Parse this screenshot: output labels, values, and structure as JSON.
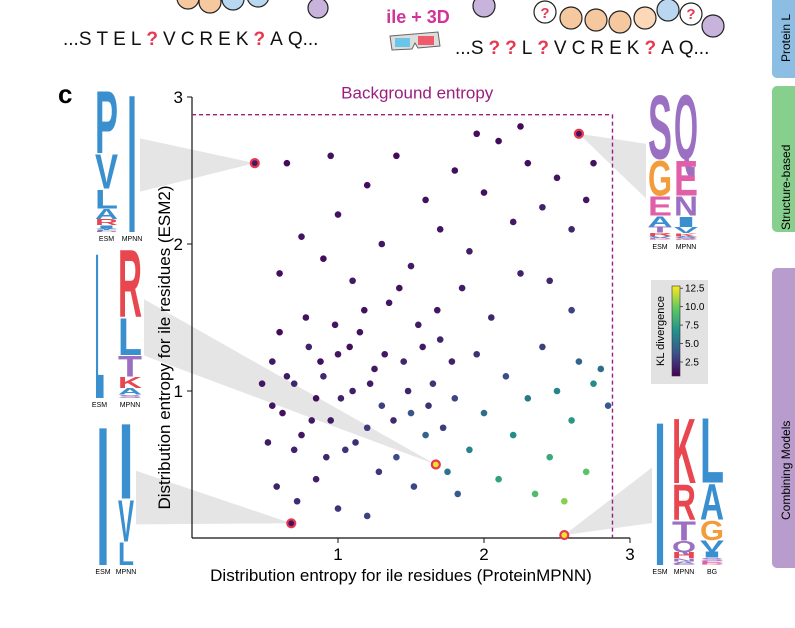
{
  "sequences": {
    "left": [
      "...S",
      "T",
      "E",
      "L",
      "?",
      "V",
      "C",
      "R",
      "E",
      "K",
      "?",
      "A",
      "Q..."
    ],
    "label": "ile + 3D",
    "right": [
      "...S",
      "?",
      "?",
      "L",
      "?",
      "V",
      "C",
      "R",
      "E",
      "K",
      "?",
      "A",
      "Q..."
    ]
  },
  "tabs": [
    "Protein L",
    "Structure-based",
    "Combining Models"
  ],
  "chart_data": {
    "type": "scatter",
    "panel_label": "c",
    "annotation": "Background entropy",
    "background_entropy": 2.88,
    "xlabel": "Distribution entropy for ile residues (ProteinMPNN)",
    "ylabel": "Distribution entropy for ile residues (ESM2)",
    "xlim": [
      0,
      3
    ],
    "ylim": [
      0,
      3
    ],
    "xticks": [
      1,
      2,
      3
    ],
    "yticks": [
      1,
      2,
      3
    ],
    "x": [
      0.55,
      0.62,
      0.7,
      0.75,
      0.8,
      0.85,
      0.9,
      0.95,
      1.0,
      1.05,
      1.1,
      1.15,
      1.2,
      1.25,
      1.3,
      1.35,
      1.4,
      1.45,
      1.5,
      1.55,
      1.6,
      1.65,
      1.7,
      1.75,
      1.8,
      1.85,
      1.9,
      1.95,
      2.0,
      2.05,
      2.1,
      2.15,
      2.2,
      2.25,
      2.3,
      2.35,
      2.4,
      2.45,
      2.5,
      2.55,
      2.6,
      2.65,
      2.7,
      2.75,
      2.8,
      0.6,
      0.75,
      0.9,
      1.0,
      1.1,
      1.2,
      1.3,
      1.4,
      1.5,
      1.6,
      1.7,
      1.8,
      1.9,
      2.0,
      2.1,
      2.2,
      2.3,
      2.4,
      2.5,
      2.6,
      2.7,
      2.75,
      2.25,
      1.95,
      0.95,
      0.65,
      0.55,
      0.6,
      0.65,
      0.7,
      0.78,
      0.82,
      0.88,
      0.92,
      0.98,
      1.02,
      1.08,
      1.12,
      1.18,
      1.22,
      1.28,
      1.32,
      1.38,
      1.42,
      1.48,
      1.52,
      1.58,
      1.62,
      1.68,
      1.72,
      1.78,
      1.82,
      0.48,
      0.52,
      0.58,
      0.72,
      0.85,
      1.0,
      1.2,
      2.85,
      2.6,
      2.45
    ],
    "values": [
      1.2,
      0.85,
      1.05,
      0.7,
      1.3,
      0.95,
      1.1,
      0.8,
      1.25,
      0.6,
      1.0,
      1.4,
      0.75,
      1.15,
      0.9,
      1.6,
      0.55,
      1.2,
      0.85,
      1.45,
      0.7,
      1.05,
      1.35,
      0.45,
      0.95,
      1.7,
      0.6,
      1.25,
      0.85,
      1.5,
      0.4,
      1.1,
      0.7,
      1.8,
      0.95,
      0.3,
      1.3,
      0.55,
      1.0,
      0.25,
      0.8,
      1.2,
      0.45,
      1.05,
      1.15,
      1.8,
      2.05,
      1.9,
      2.2,
      1.75,
      2.4,
      2.0,
      2.6,
      1.85,
      2.3,
      2.1,
      2.5,
      1.95,
      2.35,
      2.7,
      2.15,
      2.55,
      2.25,
      2.45,
      2.1,
      2.3,
      2.55,
      2.8,
      2.75,
      2.6,
      2.55,
      0.9,
      1.4,
      1.1,
      0.6,
      1.5,
      0.8,
      1.2,
      0.55,
      1.45,
      0.95,
      1.3,
      0.65,
      1.55,
      1.05,
      0.45,
      1.25,
      0.8,
      1.7,
      1.0,
      0.35,
      1.3,
      0.9,
      1.55,
      0.75,
      1.2,
      0.3,
      1.05,
      0.65,
      0.35,
      0.25,
      0.4,
      0.2,
      0.15,
      0.9,
      1.55,
      1.75
    ],
    "color_values": [
      1.5,
      1.2,
      2.0,
      1.4,
      1.8,
      1.1,
      2.2,
      1.6,
      1.3,
      2.5,
      1.7,
      1.2,
      2.8,
      1.5,
      3.0,
      1.4,
      3.5,
      2.0,
      3.8,
      1.6,
      4.5,
      2.6,
      1.9,
      5.2,
      3.2,
      1.5,
      6.0,
      2.4,
      5.0,
      2.0,
      7.5,
      3.5,
      6.5,
      1.8,
      5.5,
      9.0,
      3.0,
      8.0,
      6.0,
      10.5,
      7.0,
      4.5,
      9.5,
      6.5,
      5.0,
      1.1,
      1.3,
      1.0,
      1.2,
      1.5,
      1.1,
      1.4,
      1.0,
      1.6,
      1.2,
      1.3,
      1.1,
      1.7,
      1.2,
      1.0,
      1.5,
      1.1,
      1.9,
      1.3,
      2.0,
      1.4,
      1.2,
      1.0,
      1.1,
      1.2,
      1.0,
      1.3,
      1.0,
      1.6,
      1.8,
      1.2,
      1.5,
      1.1,
      2.0,
      1.3,
      1.8,
      1.1,
      2.3,
      1.2,
      1.6,
      2.6,
      1.4,
      2.1,
      1.2,
      1.9,
      3.2,
      1.5,
      2.4,
      1.3,
      2.9,
      1.8,
      4.0,
      1.4,
      1.6,
      1.9,
      2.2,
      1.7,
      2.5,
      3.0,
      4.0,
      3.0,
      2.0
    ],
    "clim": [
      0.6,
      12.8
    ],
    "colorbar_label": "KL divergence",
    "colorbar_ticks": [
      2.5,
      {
        "value": 5,
        "label": "5.0"
      },
      7.5,
      {
        "value": 10,
        "label": "10.0"
      },
      12.5
    ],
    "highlight": {
      "color": "#e8384f",
      "x": [
        0.43,
        2.65,
        0.68,
        1.67,
        2.55
      ],
      "values": [
        2.55,
        2.75,
        0.1,
        0.5,
        0.02
      ],
      "color_values": [
        1.5,
        1.2,
        1.2,
        12.5,
        12.5
      ]
    },
    "logos": [
      {
        "columns": [
          {
            "label": "ESM",
            "letters": [
              "P",
              "V",
              "L",
              "A",
              "R",
              "I",
              "Y",
              "F",
              "H",
              "E"
            ]
          },
          {
            "label": "MPNN",
            "letters": [
              "I"
            ]
          }
        ]
      },
      {
        "columns": [
          {
            "label": "ESM",
            "letters": [
              "L"
            ]
          },
          {
            "label": "MPNN",
            "letters": [
              "R",
              "L",
              "T",
              "K",
              "A",
              "S"
            ]
          }
        ]
      },
      {
        "columns": [
          {
            "label": "ESM",
            "letters": [
              "I"
            ]
          },
          {
            "label": "MPNN",
            "letters": [
              "I",
              "V",
              "L"
            ]
          }
        ]
      },
      {
        "columns": [
          {
            "label": "ESM",
            "letters": [
              "S",
              "G",
              "E",
              "A",
              "T",
              "R",
              "V",
              "D",
              "K",
              "L",
              "I",
              "N"
            ]
          },
          {
            "label": "MPNN",
            "letters": [
              "Q",
              "E",
              "N",
              "I",
              "V",
              "K",
              "A",
              "S",
              "T",
              "R"
            ]
          }
        ]
      },
      {
        "columns": [
          {
            "label": "ESM",
            "letters": [
              "I"
            ]
          },
          {
            "label": "MPNN",
            "letters": [
              "K",
              "R",
              "T",
              "Q",
              "H",
              "N",
              "A",
              "E",
              "C"
            ]
          },
          {
            "label": "BG",
            "letters": [
              "L",
              "A",
              "G",
              "V",
              "I",
              "S",
              "E",
              "D",
              "R",
              "K",
              "P",
              "T"
            ]
          }
        ]
      }
    ]
  }
}
